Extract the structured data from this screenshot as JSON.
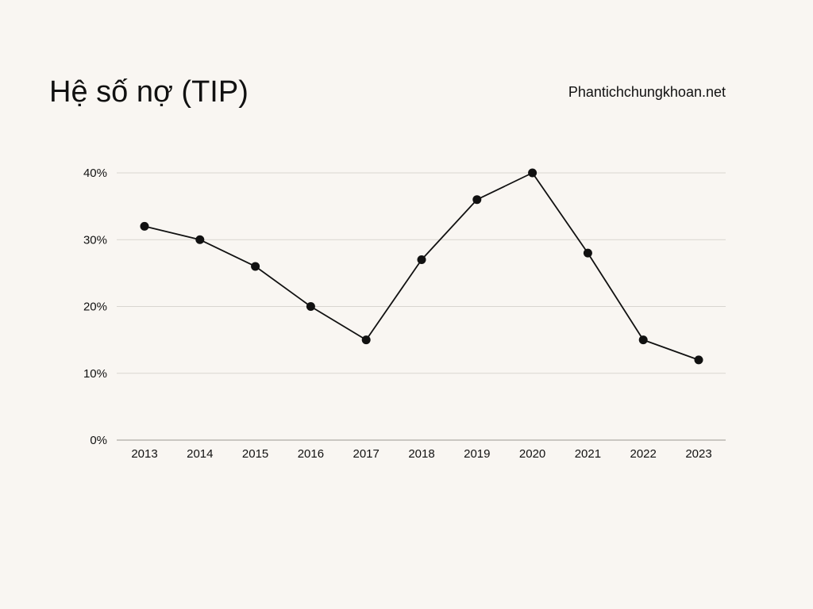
{
  "header": {
    "title": "Hệ số nợ (TIP)",
    "source": "Phantichchungkhoan.net"
  },
  "chart_data": {
    "type": "line",
    "title": "Hệ số nợ (TIP)",
    "xlabel": "",
    "ylabel": "",
    "x": [
      "2013",
      "2014",
      "2015",
      "2016",
      "2017",
      "2018",
      "2019",
      "2020",
      "2021",
      "2022",
      "2023"
    ],
    "series": [
      {
        "values": [
          32,
          30,
          26,
          20,
          15,
          27,
          36,
          40,
          28,
          15,
          12
        ]
      }
    ],
    "y_ticks": [
      "0%",
      "10%",
      "20%",
      "30%",
      "40%"
    ],
    "ylim": [
      0,
      40
    ],
    "y_unit": "%",
    "grid": true,
    "legend": "none",
    "colors": {
      "line": "#111111",
      "marker": "#111111",
      "grid": "#d9d5d0",
      "axis": "#9b9893",
      "background": "#f9f6f2"
    }
  }
}
